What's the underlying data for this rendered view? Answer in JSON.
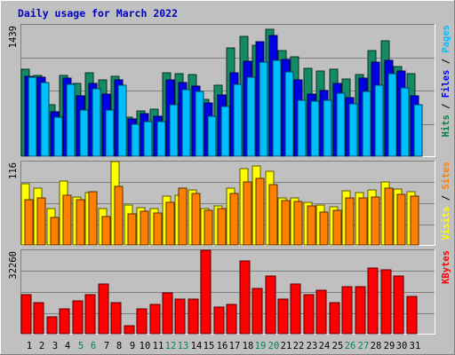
{
  "chart_data": {
    "type": "bar",
    "title": "Daily usage for March 2022",
    "categories": [
      "1",
      "2",
      "3",
      "4",
      "5",
      "6",
      "7",
      "8",
      "9",
      "10",
      "11",
      "12",
      "13",
      "14",
      "15",
      "16",
      "17",
      "18",
      "19",
      "20",
      "21",
      "22",
      "23",
      "24",
      "25",
      "26",
      "27",
      "28",
      "29",
      "30",
      "31"
    ],
    "weekend_days": [
      "5",
      "6",
      "12",
      "13",
      "19",
      "20",
      "26",
      "27"
    ],
    "panels": [
      {
        "id": "top",
        "ymax": 1439,
        "ymax_label": "1439",
        "legend": [
          {
            "text": "Hits",
            "color": "#008040"
          },
          {
            "text": " / ",
            "color": "#000000"
          },
          {
            "text": "Files",
            "color": "#0000ff"
          },
          {
            "text": " / ",
            "color": "#000000"
          },
          {
            "text": "Pages",
            "color": "#00bfff"
          }
        ],
        "series": [
          {
            "name": "Hits",
            "color": "#158b65",
            "values": [
              955,
              885,
              560,
              887,
              795,
              912,
              836,
              871,
              430,
              500,
              519,
              915,
              907,
              894,
              627,
              780,
              1191,
              1311,
              1220,
              1387,
              1154,
              1087,
              959,
              931,
              953,
              849,
              891,
              1161,
              1265,
              978,
              902
            ]
          },
          {
            "name": "Files",
            "color": "#0000e6",
            "values": [
              876,
              861,
              487,
              856,
              657,
              799,
              676,
              834,
              404,
              468,
              441,
              841,
              804,
              767,
              582,
              673,
              911,
              1039,
              1251,
              1326,
              1062,
              841,
              676,
              723,
              793,
              637,
              854,
              1035,
              1050,
              934,
              664
            ]
          },
          {
            "name": "Pages",
            "color": "#00bfff",
            "values": [
              868,
              803,
              431,
              792,
              505,
              737,
              507,
              779,
              354,
              382,
              381,
              560,
              734,
              709,
              439,
              542,
              784,
              865,
              1035,
              1051,
              924,
              611,
              599,
              614,
              688,
              569,
              713,
              782,
              904,
              750,
              565
            ]
          }
        ]
      },
      {
        "id": "mid",
        "ymax": 116,
        "ymax_label": "116",
        "legend": [
          {
            "text": "Visits",
            "color": "#ffff00"
          },
          {
            "text": " / ",
            "color": "#000000"
          },
          {
            "text": "Sites",
            "color": "#ff8000"
          }
        ],
        "series": [
          {
            "name": "Visits",
            "color": "#ffff00",
            "values": [
              85,
              79,
              50,
              89,
              67,
              73,
              51,
              116,
              55,
              52,
              51,
              68,
              69,
              77,
              51,
              54,
              79,
              106,
              110,
              103,
              66,
              65,
              59,
              55,
              53,
              75,
              73,
              77,
              88,
              78,
              74
            ]
          },
          {
            "name": "Sites",
            "color": "#ff8000",
            "values": [
              63,
              66,
              38,
              69,
              63,
              74,
              40,
              82,
              43,
              47,
              45,
              59,
              79,
              71,
              48,
              50,
              71,
              87,
              92,
              84,
              62,
              61,
              54,
              46,
              48,
              66,
              66,
              67,
              79,
              70,
              68
            ]
          }
        ]
      },
      {
        "id": "bottom",
        "ymax": 32260,
        "ymax_label": "32260",
        "legend": [
          {
            "text": "KBytes",
            "color": "#ff0000"
          }
        ],
        "series": [
          {
            "name": "KBytes",
            "color": "#ff0000",
            "values": [
              15154,
              11934,
              6383,
              9575,
              12764,
              15164,
              19165,
              11929,
              3178,
              9575,
              11178,
              15954,
              13556,
              13556,
              32260,
              10375,
              11178,
              28260,
              17564,
              22364,
              13556,
              19165,
              15164,
              16754,
              11929,
              18354,
              18354,
              25550,
              24660,
              22364,
              14364
            ]
          }
        ]
      }
    ],
    "grid": true
  }
}
